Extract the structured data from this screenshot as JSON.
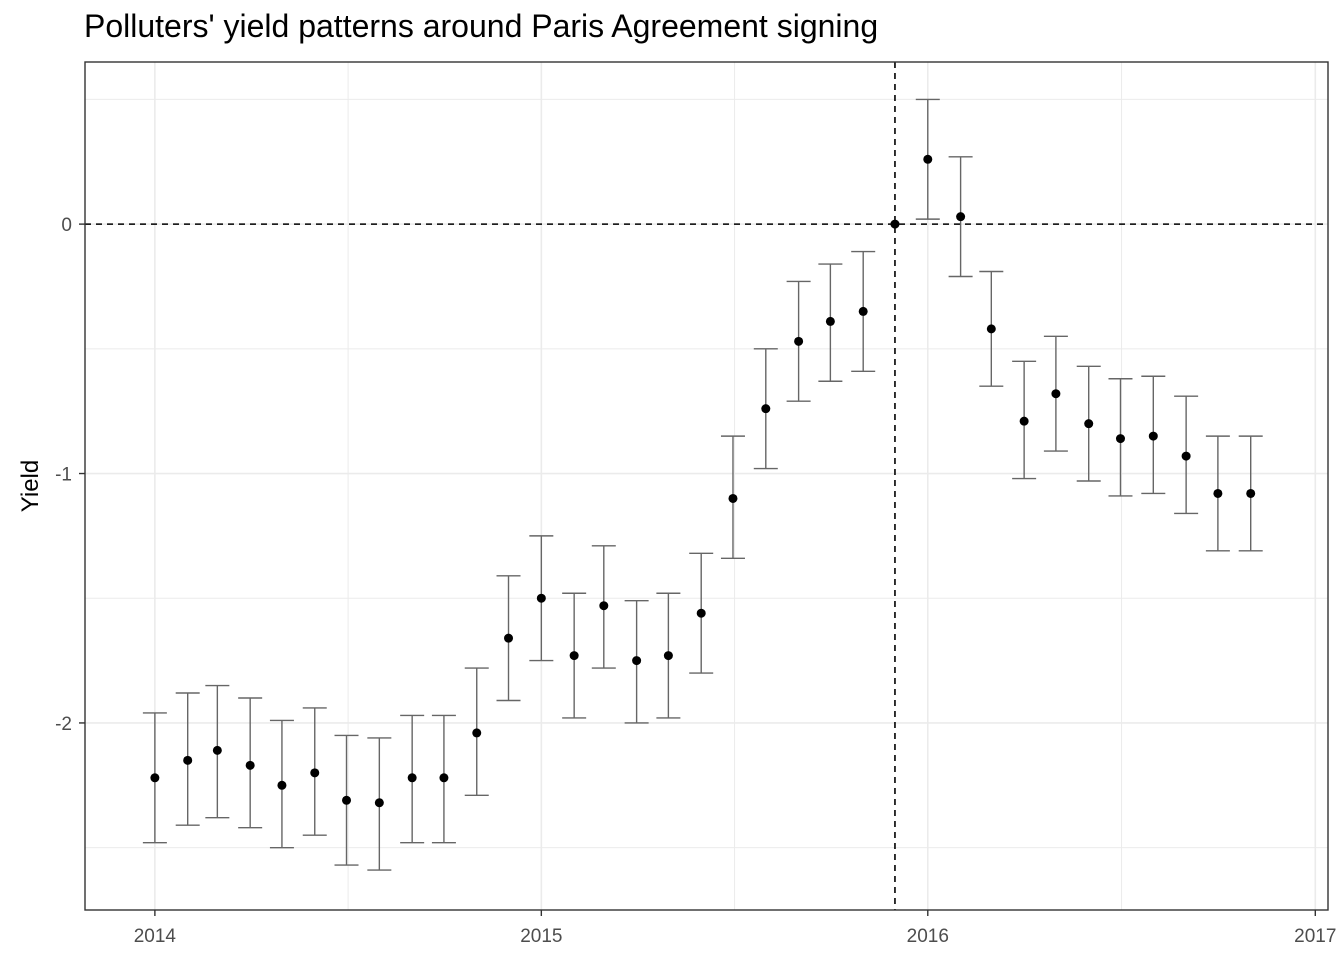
{
  "chart_data": {
    "type": "scatter",
    "title": "Polluters' yield patterns around Paris Agreement signing",
    "xlabel": "",
    "ylabel": "Yield",
    "x_ticks": [
      "2014",
      "2015",
      "2016",
      "2017"
    ],
    "y_ticks": [
      "0",
      "-1",
      "-2"
    ],
    "xlim": [
      "2013-10-27",
      "2017-01-13"
    ],
    "ylim": [
      -2.75,
      0.65
    ],
    "grid": true,
    "legend": "none",
    "reference_lines": {
      "y": 0,
      "x": "2015-12-01",
      "style": "dashed"
    },
    "series": [
      {
        "points": [
          {
            "x": "2014-01-01",
            "y": -2.22,
            "ymin": -2.48,
            "ymax": -1.96
          },
          {
            "x": "2014-02-01",
            "y": -2.15,
            "ymin": -2.41,
            "ymax": -1.88
          },
          {
            "x": "2014-03-01",
            "y": -2.11,
            "ymin": -2.38,
            "ymax": -1.85
          },
          {
            "x": "2014-04-01",
            "y": -2.17,
            "ymin": -2.42,
            "ymax": -1.9
          },
          {
            "x": "2014-05-01",
            "y": -2.25,
            "ymin": -2.5,
            "ymax": -1.99
          },
          {
            "x": "2014-06-01",
            "y": -2.2,
            "ymin": -2.45,
            "ymax": -1.94
          },
          {
            "x": "2014-07-01",
            "y": -2.31,
            "ymin": -2.57,
            "ymax": -2.05
          },
          {
            "x": "2014-08-01",
            "y": -2.32,
            "ymin": -2.59,
            "ymax": -2.06
          },
          {
            "x": "2014-09-01",
            "y": -2.22,
            "ymin": -2.48,
            "ymax": -1.97
          },
          {
            "x": "2014-10-01",
            "y": -2.22,
            "ymin": -2.48,
            "ymax": -1.97
          },
          {
            "x": "2014-11-01",
            "y": -2.04,
            "ymin": -2.29,
            "ymax": -1.78
          },
          {
            "x": "2014-12-01",
            "y": -1.66,
            "ymin": -1.91,
            "ymax": -1.41
          },
          {
            "x": "2015-01-01",
            "y": -1.5,
            "ymin": -1.75,
            "ymax": -1.25
          },
          {
            "x": "2015-02-01",
            "y": -1.73,
            "ymin": -1.98,
            "ymax": -1.48
          },
          {
            "x": "2015-03-01",
            "y": -1.53,
            "ymin": -1.78,
            "ymax": -1.29
          },
          {
            "x": "2015-04-01",
            "y": -1.75,
            "ymin": -2.0,
            "ymax": -1.51
          },
          {
            "x": "2015-05-01",
            "y": -1.73,
            "ymin": -1.98,
            "ymax": -1.48
          },
          {
            "x": "2015-06-01",
            "y": -1.56,
            "ymin": -1.8,
            "ymax": -1.32
          },
          {
            "x": "2015-07-01",
            "y": -1.1,
            "ymin": -1.34,
            "ymax": -0.85
          },
          {
            "x": "2015-08-01",
            "y": -0.74,
            "ymin": -0.98,
            "ymax": -0.5
          },
          {
            "x": "2015-09-01",
            "y": -0.47,
            "ymin": -0.71,
            "ymax": -0.23
          },
          {
            "x": "2015-10-01",
            "y": -0.39,
            "ymin": -0.63,
            "ymax": -0.16
          },
          {
            "x": "2015-11-01",
            "y": -0.35,
            "ymin": -0.59,
            "ymax": -0.11
          },
          {
            "x": "2015-12-01",
            "y": 0.0,
            "ymin": 0.0,
            "ymax": 0.0
          },
          {
            "x": "2016-01-01",
            "y": 0.26,
            "ymin": 0.02,
            "ymax": 0.5
          },
          {
            "x": "2016-02-01",
            "y": 0.03,
            "ymin": -0.21,
            "ymax": 0.27
          },
          {
            "x": "2016-03-01",
            "y": -0.42,
            "ymin": -0.65,
            "ymax": -0.19
          },
          {
            "x": "2016-04-01",
            "y": -0.79,
            "ymin": -1.02,
            "ymax": -0.55
          },
          {
            "x": "2016-05-01",
            "y": -0.68,
            "ymin": -0.91,
            "ymax": -0.45
          },
          {
            "x": "2016-06-01",
            "y": -0.8,
            "ymin": -1.03,
            "ymax": -0.57
          },
          {
            "x": "2016-07-01",
            "y": -0.86,
            "ymin": -1.09,
            "ymax": -0.62
          },
          {
            "x": "2016-08-01",
            "y": -0.85,
            "ymin": -1.08,
            "ymax": -0.61
          },
          {
            "x": "2016-09-01",
            "y": -0.93,
            "ymin": -1.16,
            "ymax": -0.69
          },
          {
            "x": "2016-10-01",
            "y": -1.08,
            "ymin": -1.31,
            "ymax": -0.85
          },
          {
            "x": "2016-11-01",
            "y": -1.08,
            "ymin": -1.31,
            "ymax": -0.85
          }
        ]
      }
    ]
  },
  "colors": {
    "point": "#000000",
    "errorbar": "#666666",
    "grid": "#ebebeb",
    "panel_border": "#333333",
    "tick_label": "#4d4d4d",
    "reference_line": "#000000"
  }
}
